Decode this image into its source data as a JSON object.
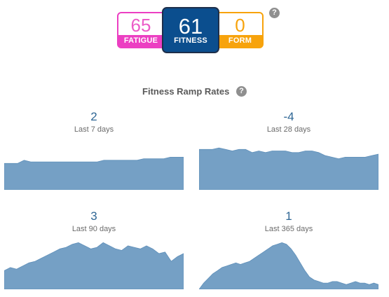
{
  "metrics": {
    "fatigue": {
      "value": "65",
      "label": "FATIGUE",
      "color": "#ec3fc2"
    },
    "fitness": {
      "value": "61",
      "label": "FITNESS",
      "color": "#0b4e8e"
    },
    "form": {
      "value": "0",
      "label": "FORM",
      "color": "#f7a30c"
    },
    "help_icon": "?"
  },
  "ramp": {
    "title": "Fitness Ramp Rates",
    "help_icon": "?",
    "panels": [
      {
        "rate": "2",
        "period": "Last 7 days"
      },
      {
        "rate": "-4",
        "period": "Last 28 days"
      },
      {
        "rate": "3",
        "period": "Last 90 days"
      },
      {
        "rate": "1",
        "period": "Last 365 days"
      }
    ]
  },
  "chart_data": [
    {
      "type": "area",
      "title": "Last 7 days",
      "values": [
        57,
        57,
        57,
        59,
        58,
        58,
        58,
        58,
        58,
        58,
        58,
        58,
        58,
        58,
        58,
        59,
        59,
        59,
        59,
        59,
        59,
        60,
        60,
        60,
        60,
        61,
        61,
        61
      ]
    },
    {
      "type": "area",
      "title": "Last 28 days",
      "values": [
        66,
        66,
        66,
        67,
        66,
        65,
        66,
        66,
        64,
        65,
        64,
        65,
        65,
        65,
        64,
        64,
        65,
        65,
        64,
        62,
        61,
        60,
        61,
        61,
        61,
        61,
        62,
        63
      ]
    },
    {
      "type": "area",
      "title": "Last 90 days",
      "values": [
        52,
        54,
        53,
        55,
        57,
        58,
        60,
        62,
        64,
        66,
        67,
        69,
        70,
        68,
        66,
        67,
        70,
        68,
        66,
        65,
        68,
        67,
        66,
        68,
        66,
        63,
        64,
        58,
        61,
        63
      ]
    },
    {
      "type": "area",
      "title": "Last 365 days",
      "values": [
        40,
        44,
        47,
        50,
        52,
        54,
        55,
        56,
        57,
        56,
        57,
        58,
        60,
        62,
        64,
        66,
        68,
        69,
        70,
        69,
        66,
        62,
        57,
        52,
        48,
        46,
        45,
        44,
        44,
        45,
        45,
        44,
        43,
        44,
        45,
        44,
        44,
        43,
        44,
        43
      ]
    }
  ]
}
